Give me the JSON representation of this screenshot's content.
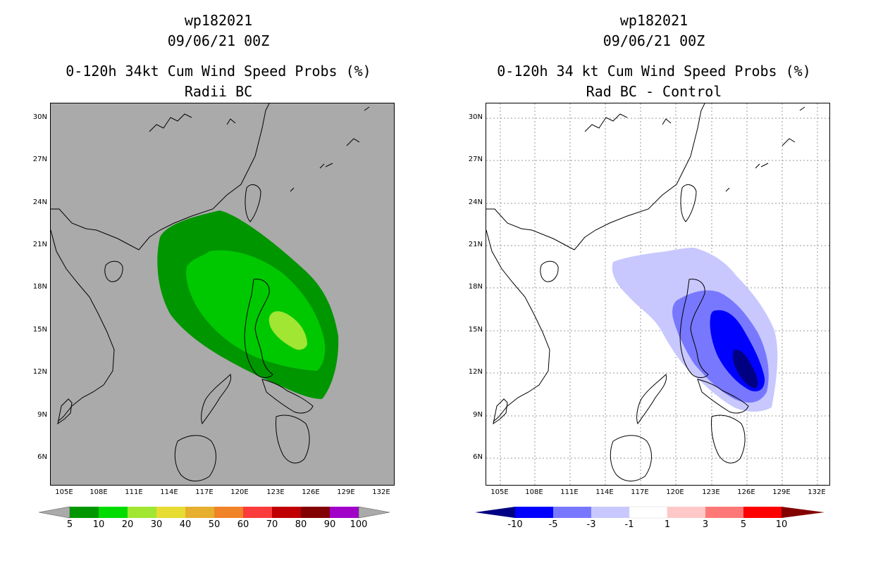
{
  "left": {
    "title_line1": "wp182021",
    "title_line2": "09/06/21 00Z",
    "title_line3": "0-120h 34kt Cum Wind Speed Probs (%)",
    "title_line4": "Radii BC",
    "background_color": "#aaaaaa",
    "shading": [
      {
        "level": "5",
        "color": "#009600"
      },
      {
        "level": "10",
        "color": "#00c800"
      },
      {
        "level": "20",
        "color": "#a0e632"
      }
    ],
    "colorbar": {
      "labels": [
        "5",
        "10",
        "20",
        "30",
        "40",
        "50",
        "60",
        "70",
        "80",
        "90",
        "100"
      ],
      "colors": [
        "#009600",
        "#00dc00",
        "#a0e632",
        "#e6dc32",
        "#e6af2d",
        "#f08228",
        "#fa3c3c",
        "#c00000",
        "#a000c8",
        "#aaaaaa"
      ]
    }
  },
  "right": {
    "title_line1": "wp182021",
    "title_line2": "09/06/21 00Z",
    "title_line3": "0-120h 34 kt Cum Wind Speed Probs (%)",
    "title_line4": "Rad BC - Control",
    "background_color": "#ffffff",
    "shading": [
      {
        "level": "-1",
        "color": "#c8c8ff"
      },
      {
        "level": "-3",
        "color": "#7878ff"
      },
      {
        "level": "-5",
        "color": "#0000ff"
      },
      {
        "level": "-10",
        "color": "#000082"
      }
    ],
    "colorbar": {
      "labels": [
        "-10",
        "-5",
        "-3",
        "-1",
        "1",
        "3",
        "5",
        "10"
      ],
      "colors": [
        "#000082",
        "#0000ff",
        "#7878ff",
        "#c8c8ff",
        "#ffffff",
        "#ffc8c8",
        "#ff7878",
        "#ff0000",
        "#820000"
      ]
    }
  },
  "axes": {
    "lat_labels": [
      "30N",
      "27N",
      "24N",
      "21N",
      "18N",
      "15N",
      "12N",
      "9N",
      "6N"
    ],
    "lon_labels": [
      "105E",
      "108E",
      "111E",
      "114E",
      "117E",
      "120E",
      "123E",
      "126E",
      "129E",
      "132E"
    ]
  },
  "chart_data": {
    "type": "heatmap",
    "lat_range": [
      4.0,
      30.8
    ],
    "lon_range": [
      104,
      132.8
    ],
    "left_field": "0-120h 34kt cumulative wind speed probability (%)",
    "left_max_band": "20-30",
    "right_field": "Rad BC minus Control difference (%)",
    "right_min_band": "below -10"
  }
}
